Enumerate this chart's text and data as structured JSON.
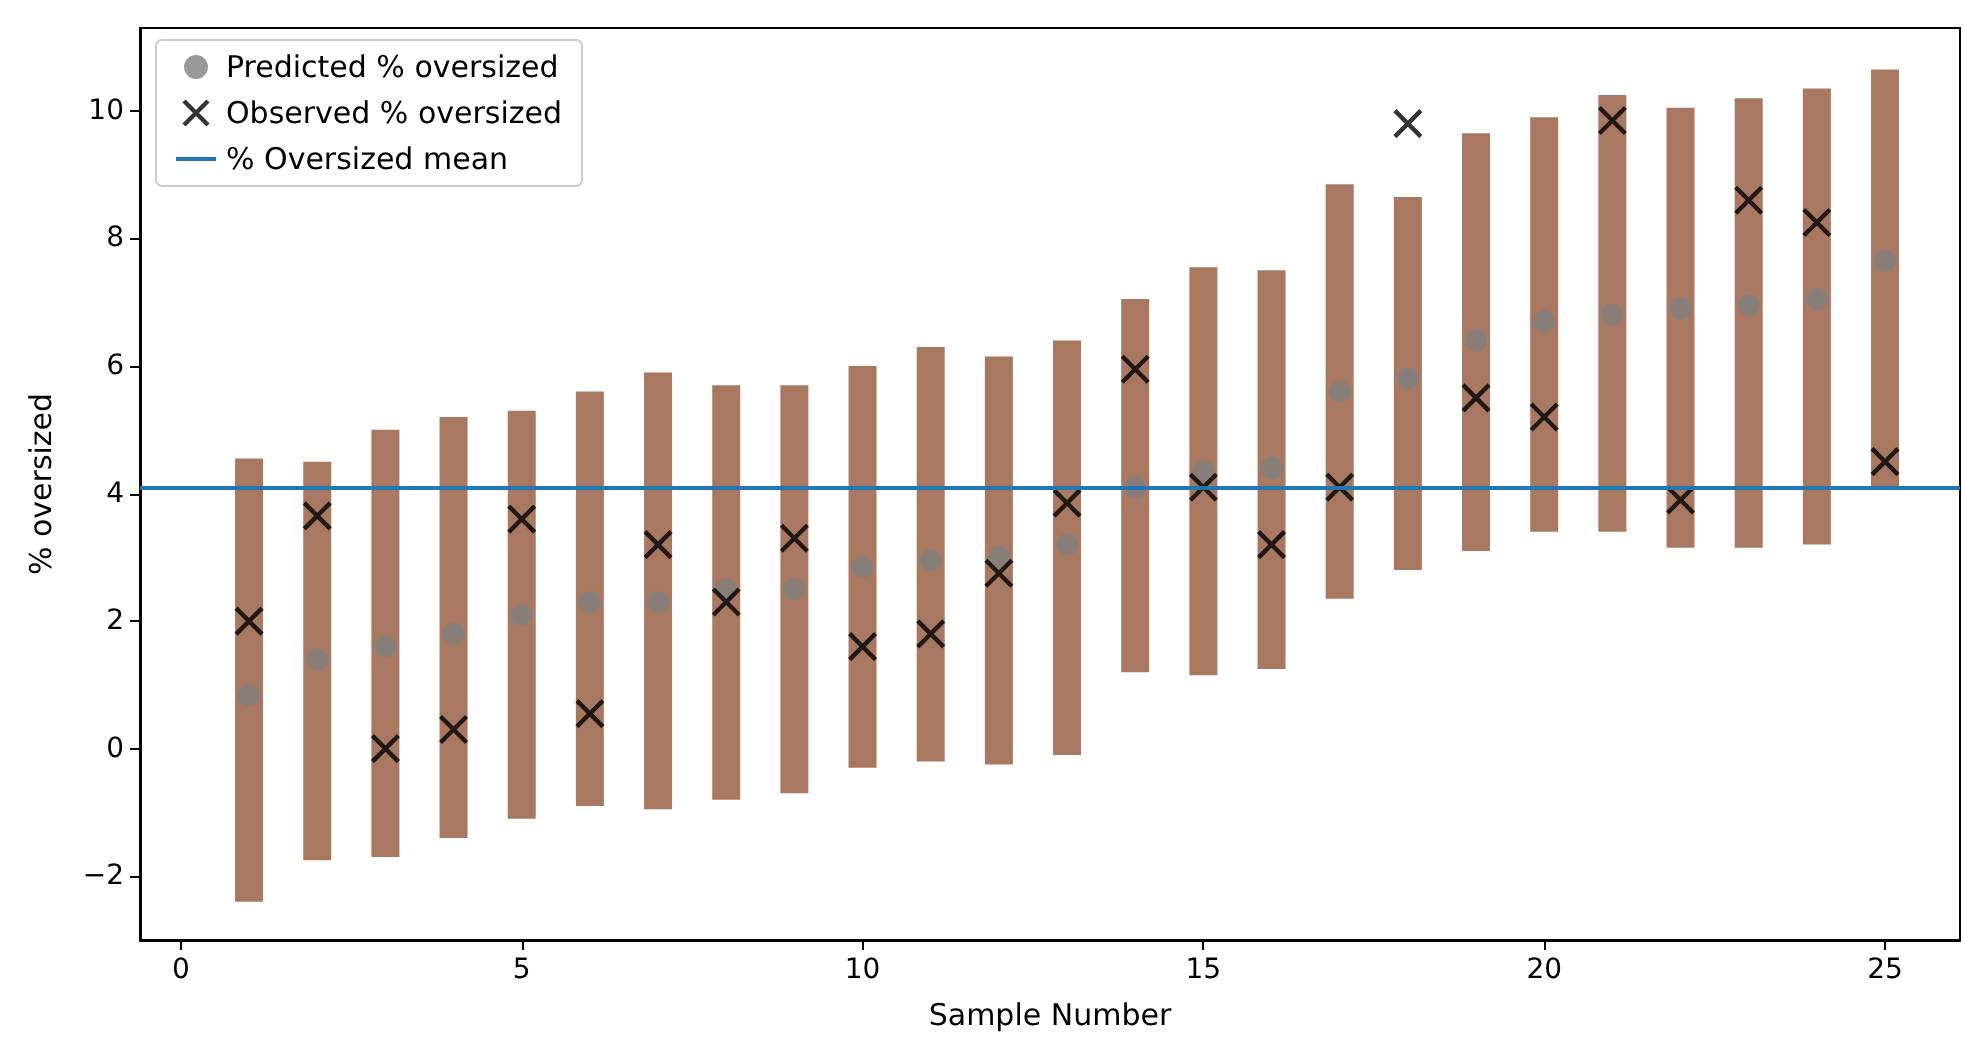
{
  "chart_data": {
    "type": "scatter",
    "xlabel": "Sample Number",
    "ylabel": "% oversized",
    "x": [
      1,
      2,
      3,
      4,
      5,
      6,
      7,
      8,
      9,
      10,
      11,
      12,
      13,
      14,
      15,
      16,
      17,
      18,
      19,
      20,
      21,
      22,
      23,
      24,
      25
    ],
    "series": [
      {
        "name": "Predicted % oversized",
        "color": "#808080",
        "marker": "circle",
        "values": [
          0.84,
          1.4,
          1.6,
          1.8,
          2.1,
          2.3,
          2.3,
          2.5,
          2.5,
          2.85,
          2.95,
          3.0,
          3.2,
          4.1,
          4.35,
          4.4,
          5.6,
          5.8,
          6.4,
          6.7,
          6.8,
          6.9,
          6.95,
          7.05,
          7.65
        ],
        "errors": [
          [
            -2.4,
            4.55
          ],
          [
            -1.75,
            4.5
          ],
          [
            -1.7,
            5.0
          ],
          [
            -1.4,
            5.2
          ],
          [
            -1.1,
            5.3
          ],
          [
            -0.9,
            5.6
          ],
          [
            -0.95,
            5.9
          ],
          [
            -0.8,
            5.7
          ],
          [
            -0.7,
            5.7
          ],
          [
            -0.3,
            6.0
          ],
          [
            -0.2,
            6.3
          ],
          [
            -0.25,
            6.15
          ],
          [
            -0.1,
            6.4
          ],
          [
            1.2,
            7.05
          ],
          [
            1.15,
            7.55
          ],
          [
            1.25,
            7.5
          ],
          [
            2.35,
            8.85
          ],
          [
            2.8,
            8.65
          ],
          [
            3.1,
            9.65
          ],
          [
            3.4,
            9.9
          ],
          [
            3.4,
            10.25
          ],
          [
            3.15,
            10.05
          ],
          [
            3.15,
            10.2
          ],
          [
            3.2,
            10.35
          ],
          [
            4.1,
            10.65
          ]
        ]
      },
      {
        "name": "Observed % oversized",
        "color": "#000000",
        "marker": "cross",
        "values": [
          2.0,
          3.65,
          0.0,
          0.3,
          3.6,
          0.55,
          3.2,
          2.3,
          3.3,
          1.6,
          1.8,
          2.75,
          3.85,
          5.95,
          4.1,
          3.2,
          4.1,
          9.8,
          5.5,
          5.2,
          9.85,
          3.9,
          8.6,
          8.25,
          4.5
        ]
      }
    ],
    "ref_lines": [
      {
        "axis": "y",
        "value": 4.1,
        "label": "% Oversized mean",
        "color": "#1f77b4",
        "line_style": "solid"
      }
    ],
    "xlim": [
      -0.6,
      26.1
    ],
    "xticks": [
      0,
      5,
      10,
      15,
      20,
      25
    ],
    "ylim": [
      -3,
      11.3
    ],
    "yticks": [
      -2,
      0,
      2,
      4,
      6,
      8,
      10
    ],
    "grid": false,
    "legend": "top left"
  }
}
